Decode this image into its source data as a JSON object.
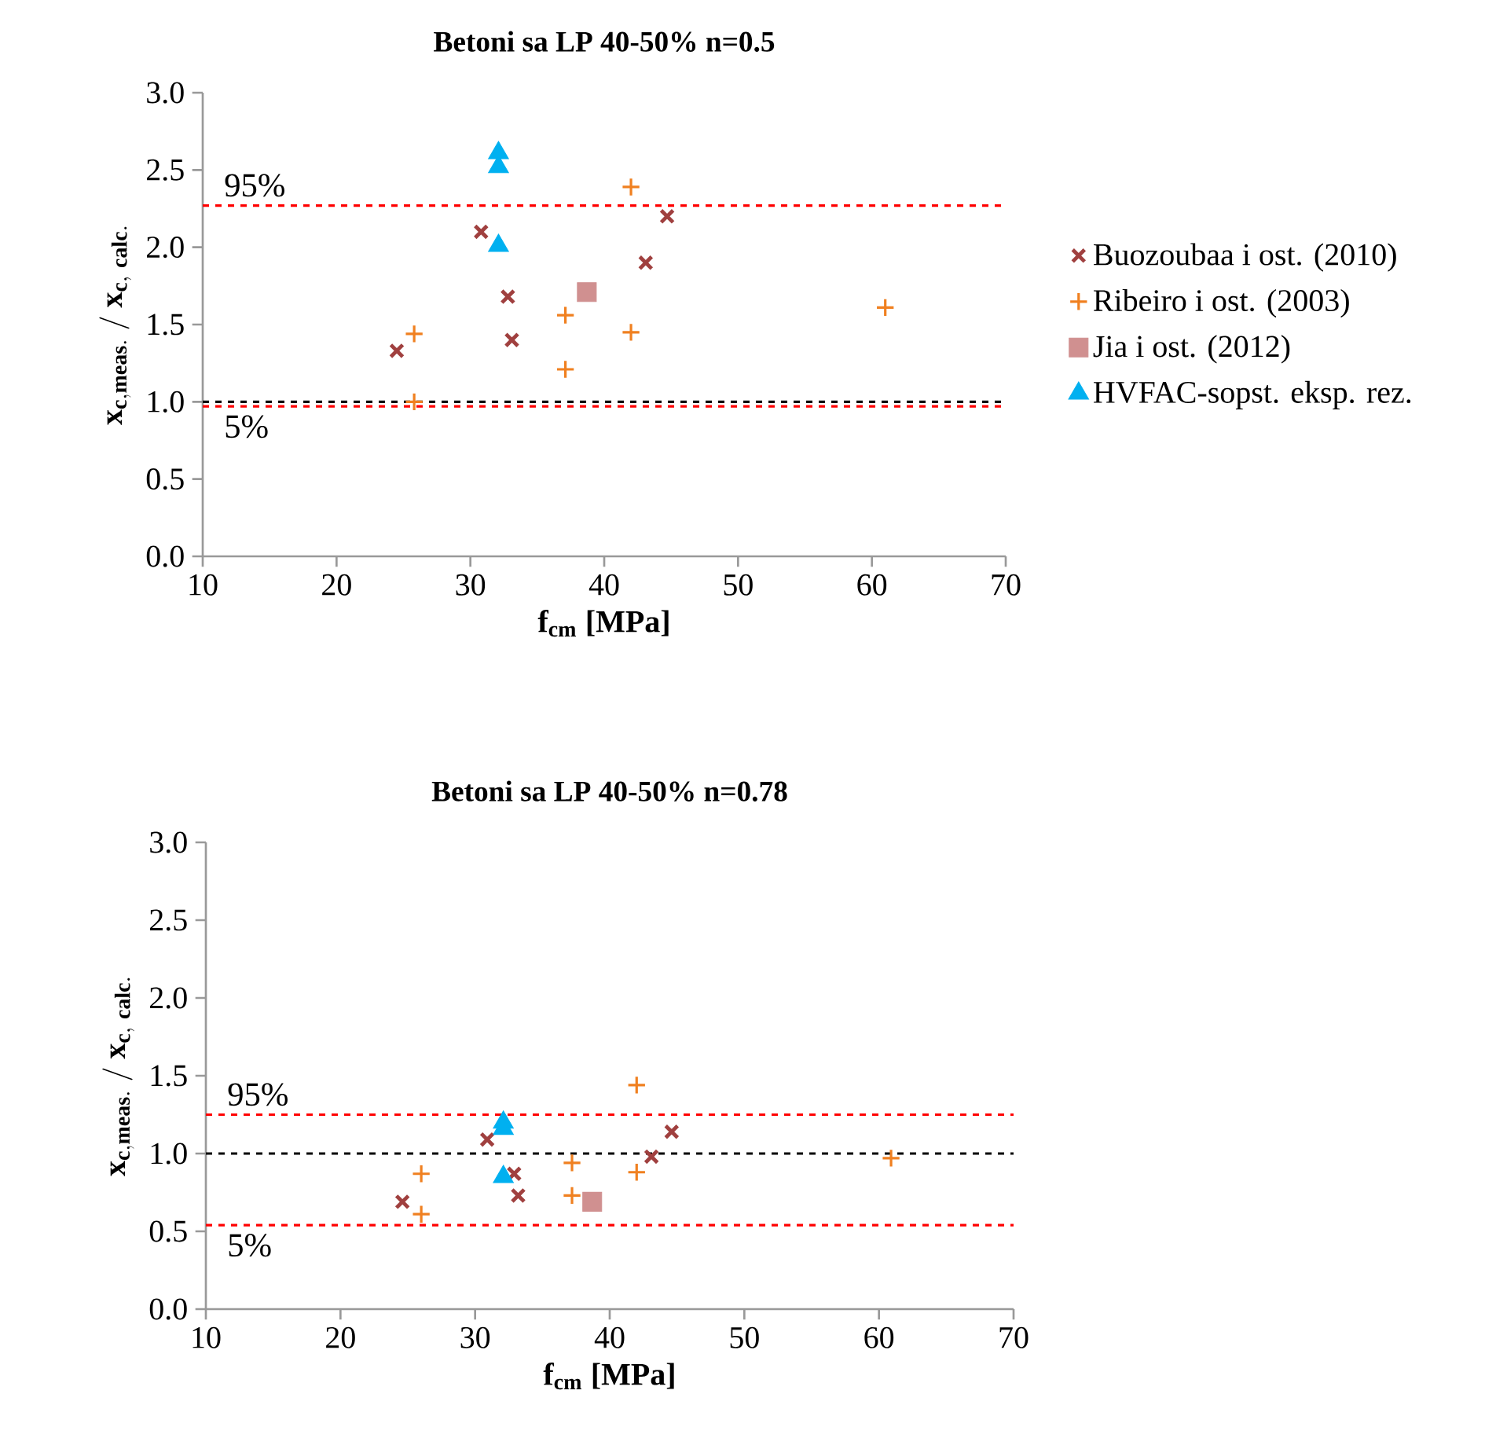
{
  "chart_data": [
    {
      "type": "scatter",
      "title": "Betoni sa LP 40-50% n=0.5",
      "xlabel": "f$_{cm}$ [MPa]",
      "ylabel": "\\mathbf{x_{c,meas.}\\ /\\ x_{c,\\ calc.}}",
      "annotations": [
        "95%",
        "5%"
      ],
      "xlim": [
        10,
        70
      ],
      "xticks": [
        10,
        20,
        30,
        40,
        50,
        60,
        70
      ],
      "ylim": [
        0,
        3
      ],
      "yticks": [
        {
          "value": 0,
          "label": "0.0"
        },
        {
          "value": 0.5,
          "label": "0.5"
        },
        {
          "value": 1,
          "label": "1.0"
        },
        {
          "value": 1.5,
          "label": "1.5"
        },
        {
          "value": 2,
          "label": "2.0"
        },
        {
          "value": 2.5,
          "label": "2.5"
        },
        {
          "value": 3,
          "label": "3.0"
        }
      ],
      "legend": "right",
      "series": [
        {
          "name": "Buozoubaa i ost. (2010)",
          "color": "#a0403f",
          "marker": "cross",
          "x": [
            24.5,
            30.8,
            32.8,
            33.1,
            43.1,
            44.7
          ],
          "values": [
            1.33,
            2.1,
            1.68,
            1.4,
            1.9,
            2.2
          ]
        },
        {
          "name": "Ribeiro i ost. (2003)",
          "color": "#f08020",
          "x": [
            25.8,
            25.8,
            37.1,
            37.1,
            42.0,
            42.0,
            61.0
          ],
          "values": [
            1.44,
            1.0,
            1.56,
            1.21,
            2.39,
            1.45,
            1.61
          ]
        },
        {
          "name": "Jia i ost. (2012)",
          "color": "#d09090",
          "marker": "square",
          "x": [
            38.7
          ],
          "values": [
            1.71
          ]
        },
        {
          "name": "HVFAC-sopst. eksp. rez.",
          "color": "#00b0f0",
          "marker": "triangle",
          "x": [
            32.1,
            32.1,
            32.1
          ],
          "values": [
            2.61,
            2.52,
            2.01
          ]
        }
      ],
      "ref_lines": [
        {
          "axis": "y",
          "value": 2.27,
          "color": "#ff0000",
          "line_style": "dashed"
        },
        {
          "axis": "y",
          "value": 0.97,
          "color": "#ff0000",
          "line_style": "dashed"
        },
        {
          "axis": "y",
          "value": 1.0,
          "color": "#000000",
          "line_style": "dashed"
        }
      ]
    },
    {
      "type": "scatter",
      "title": "Betoni sa LP 40-50% n=0.78",
      "xlabel": "f$_{cm}$ [MPa]",
      "ylabel": "\\mathbf{x_{c,meas.}\\ /\\ x_{c,\\ calc.}}",
      "annotations": [
        "95%",
        "5%"
      ],
      "xlim": [
        10,
        70
      ],
      "xticks": [
        10,
        20,
        30,
        40,
        50,
        60,
        70
      ],
      "ylim": [
        0,
        3
      ],
      "yticks": [
        {
          "value": 0,
          "label": "0.0"
        },
        {
          "value": 0.5,
          "label": "0.5"
        },
        {
          "value": 1,
          "label": "1.0"
        },
        {
          "value": 1.5,
          "label": "1.5"
        },
        {
          "value": 2,
          "label": "2.0"
        },
        {
          "value": 2.5,
          "label": "2.5"
        },
        {
          "value": 3,
          "label": "3.0"
        }
      ],
      "series": [
        {
          "color": "#a0403f",
          "marker": "cross",
          "x": [
            24.6,
            30.9,
            32.9,
            33.2,
            43.1,
            44.6
          ],
          "values": [
            0.69,
            1.09,
            0.87,
            0.73,
            0.98,
            1.14
          ]
        },
        {
          "color": "#f08020",
          "x": [
            26.0,
            26.0,
            37.2,
            37.2,
            42.0,
            42.0,
            60.9
          ],
          "values": [
            0.87,
            0.61,
            0.94,
            0.73,
            1.44,
            0.88,
            0.97
          ]
        },
        {
          "color": "#d09090",
          "marker": "square",
          "x": [
            38.7
          ],
          "values": [
            0.69
          ]
        },
        {
          "color": "#00b0f0",
          "marker": "triangle",
          "x": [
            32.1,
            32.1,
            32.1
          ],
          "values": [
            1.2,
            1.16,
            0.85
          ]
        }
      ],
      "ref_lines": [
        {
          "axis": "y",
          "value": 1.25,
          "color": "#ff0000",
          "line_style": "dashed"
        },
        {
          "axis": "y",
          "value": 0.54,
          "color": "#ff0000",
          "line_style": "dashed"
        },
        {
          "axis": "y",
          "value": 1.0,
          "color": "#000000",
          "line_style": "dashed"
        }
      ]
    }
  ]
}
